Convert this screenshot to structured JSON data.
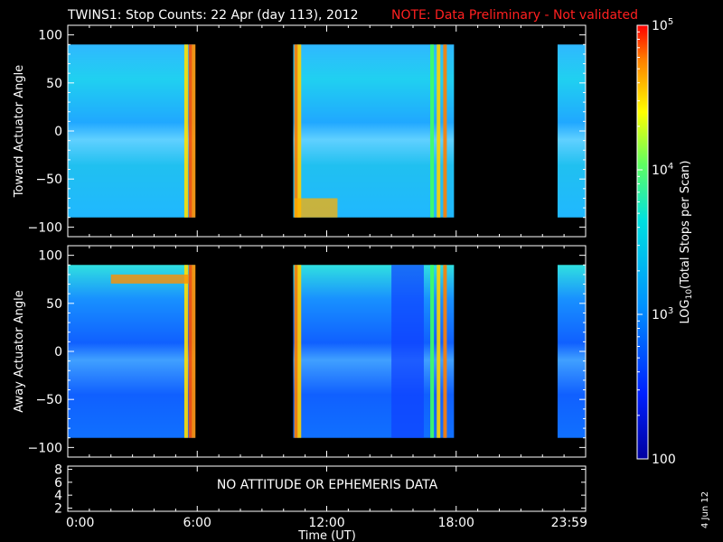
{
  "title": "TWINS1: Stop Counts: 22 Apr (day 113), 2012",
  "note": "NOTE: Data Preliminary - Not validated",
  "footer_date": "4 Jun 12",
  "no_data_message": "NO ATTITUDE OR EPHEMERIS DATA",
  "colors": {
    "note": "#ff2020",
    "background": "#000000",
    "frame": "#ffffff"
  },
  "chart_data": [
    {
      "type": "heatmap",
      "ylabel": "Toward Actuator Angle",
      "xlim": [
        0,
        24
      ],
      "ylim": [
        -110,
        110
      ],
      "y_ticks": [
        "100",
        "50",
        "0",
        "−50",
        "−100"
      ],
      "y_tick_values": [
        100,
        50,
        0,
        -50,
        -100
      ],
      "data_y_range": [
        -90,
        90
      ],
      "data_intervals_hours": [
        [
          0,
          5.9
        ],
        [
          10.45,
          17.9
        ],
        [
          22.7,
          24
        ]
      ],
      "colorscale": "log10",
      "grid": false
    },
    {
      "type": "heatmap",
      "ylabel": "Away Actuator Angle",
      "xlim": [
        0,
        24
      ],
      "ylim": [
        -110,
        110
      ],
      "y_ticks": [
        "100",
        "50",
        "0",
        "−50",
        "−100"
      ],
      "y_tick_values": [
        100,
        50,
        0,
        -50,
        -100
      ],
      "data_y_range": [
        -90,
        90
      ],
      "data_intervals_hours": [
        [
          0,
          5.9
        ],
        [
          10.45,
          17.9
        ],
        [
          22.7,
          24
        ]
      ],
      "colorscale": "log10",
      "grid": false
    },
    {
      "type": "line",
      "y_ticks": [
        "8",
        "6",
        "4",
        "2"
      ],
      "y_tick_values": [
        8,
        6,
        4,
        2
      ],
      "ylim": [
        1.5,
        8.5
      ],
      "series": []
    }
  ],
  "x_axis": {
    "label": "Time (UT)",
    "ticks": [
      "0:00",
      "6:00",
      "12:00",
      "18:00",
      "23:59"
    ],
    "tick_hours": [
      0,
      6,
      12,
      18,
      24
    ]
  },
  "colorbar": {
    "label_prefix": "LOG",
    "label_sub": "10",
    "label_suffix": "(Total Stops per Scan)",
    "ticks": [
      {
        "base": "10",
        "exp": "5",
        "value": 100000
      },
      {
        "base": "10",
        "exp": "4",
        "value": 10000
      },
      {
        "base": "10",
        "exp": "3",
        "value": 1000
      },
      {
        "base": "100",
        "exp": "",
        "value": 100
      }
    ],
    "range": [
      100,
      100000
    ]
  }
}
